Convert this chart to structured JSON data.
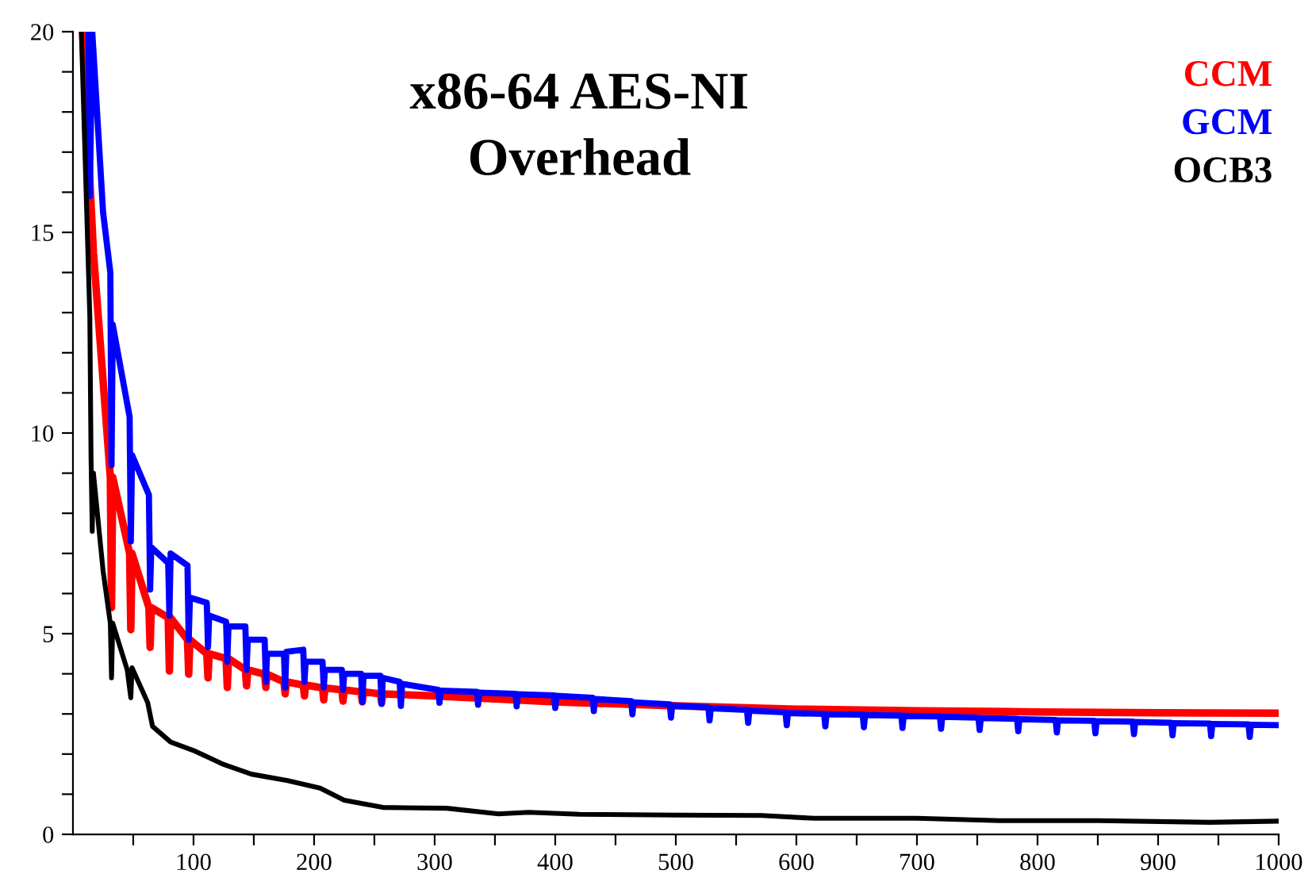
{
  "chart_data": {
    "type": "line",
    "title": "x86-64 AES-NI\nOverhead",
    "legend": "top right",
    "line_style": "solid",
    "xlim": [
      0,
      1000
    ],
    "ylim": [
      0,
      20
    ],
    "xticks": [
      {
        "value": 50,
        "label": null
      },
      100,
      {
        "value": 150,
        "label": null
      },
      200,
      {
        "value": 250,
        "label": null
      },
      300,
      {
        "value": 350,
        "label": null
      },
      400,
      {
        "value": 450,
        "label": null
      },
      500,
      {
        "value": 550,
        "label": null
      },
      600,
      {
        "value": 650,
        "label": null
      },
      700,
      {
        "value": 750,
        "label": null
      },
      800,
      {
        "value": 850,
        "label": null
      },
      900,
      {
        "value": 950,
        "label": null
      },
      1000
    ],
    "yticks": [
      0,
      {
        "value": 1,
        "label": null
      },
      {
        "value": 2,
        "label": null
      },
      {
        "value": 3,
        "label": null
      },
      {
        "value": 4,
        "label": null
      },
      5,
      {
        "value": 6,
        "label": null
      },
      {
        "value": 7,
        "label": null
      },
      {
        "value": 8,
        "label": null
      },
      {
        "value": 9,
        "label": null
      },
      10,
      {
        "value": 11,
        "label": null
      },
      {
        "value": 12,
        "label": null
      },
      {
        "value": 13,
        "label": null
      },
      {
        "value": 14,
        "label": null
      },
      15,
      {
        "value": 16,
        "label": null
      },
      {
        "value": 17,
        "label": null
      },
      {
        "value": 18,
        "label": null
      },
      {
        "value": 19,
        "label": null
      },
      20
    ],
    "series": [
      {
        "name": "CCM",
        "color": "#ff0000",
        "x": [
          8,
          17,
          31,
          32,
          33,
          47,
          48,
          49,
          63,
          64,
          65,
          79,
          80,
          81,
          95,
          96,
          97,
          111,
          112,
          113,
          127,
          128,
          129,
          143,
          144,
          145,
          159,
          160,
          161,
          175,
          176,
          177,
          191,
          192,
          193,
          207,
          208,
          209,
          223,
          224,
          225,
          239,
          240,
          241,
          255,
          256,
          257,
          300,
          400,
          500,
          600,
          700,
          800,
          900,
          1000
        ],
        "values": [
          20,
          14.5,
          8.9,
          5.65,
          8.9,
          7.0,
          5.1,
          7.0,
          5.65,
          4.66,
          5.65,
          5.4,
          4.07,
          5.4,
          4.85,
          3.99,
          4.85,
          4.5,
          3.9,
          4.5,
          4.38,
          3.66,
          4.38,
          4.1,
          3.7,
          4.1,
          3.99,
          3.66,
          3.99,
          3.8,
          3.5,
          3.8,
          3.72,
          3.45,
          3.72,
          3.65,
          3.35,
          3.65,
          3.6,
          3.32,
          3.6,
          3.55,
          3.3,
          3.55,
          3.5,
          3.28,
          3.5,
          3.45,
          3.3,
          3.2,
          3.12,
          3.08,
          3.05,
          3.03,
          3.02
        ]
      },
      {
        "name": "GCM",
        "color": "#0000ff",
        "x": [
          13,
          14,
          16,
          25,
          31,
          32,
          33,
          47,
          48,
          49,
          63,
          64,
          65,
          79,
          80,
          81,
          95,
          96,
          97,
          111,
          112,
          113,
          127,
          128,
          129,
          143,
          144,
          145,
          159,
          160,
          161,
          175,
          176,
          177,
          191,
          192,
          193,
          207,
          208,
          209,
          223,
          224,
          225,
          239,
          240,
          241,
          255,
          256,
          257,
          271,
          272,
          273,
          303,
          304,
          305,
          335,
          336,
          337,
          367,
          368,
          369,
          399,
          400,
          401,
          431,
          432,
          433,
          463,
          464,
          465,
          495,
          496,
          497,
          527,
          528,
          529,
          559,
          560,
          561,
          591,
          592,
          593,
          623,
          624,
          625,
          655,
          656,
          657,
          687,
          688,
          689,
          719,
          720,
          721,
          751,
          752,
          753,
          783,
          784,
          785,
          815,
          816,
          817,
          847,
          848,
          849,
          879,
          880,
          881,
          911,
          912,
          913,
          943,
          944,
          945,
          975,
          976,
          977,
          1000
        ],
        "values": [
          20,
          15.9,
          20,
          15.5,
          14,
          9.2,
          12.7,
          10.4,
          7.3,
          9.45,
          8.46,
          6.1,
          7.15,
          6.76,
          5.45,
          7.0,
          6.7,
          4.85,
          5.9,
          5.77,
          4.66,
          5.45,
          5.3,
          4.3,
          5.18,
          5.18,
          4.1,
          4.85,
          4.85,
          3.8,
          4.5,
          4.5,
          3.66,
          4.55,
          4.6,
          3.8,
          4.3,
          4.3,
          3.66,
          4.1,
          4.1,
          3.6,
          4.0,
          4.0,
          3.3,
          3.95,
          3.95,
          3.25,
          3.9,
          3.8,
          3.2,
          3.75,
          3.6,
          3.28,
          3.58,
          3.55,
          3.23,
          3.53,
          3.5,
          3.19,
          3.49,
          3.46,
          3.15,
          3.45,
          3.4,
          3.07,
          3.37,
          3.32,
          2.99,
          3.29,
          3.24,
          2.91,
          3.21,
          3.16,
          2.84,
          3.14,
          3.1,
          2.78,
          3.08,
          3.04,
          2.72,
          3.02,
          3.0,
          2.69,
          2.99,
          2.98,
          2.67,
          2.97,
          2.96,
          2.65,
          2.95,
          2.94,
          2.63,
          2.93,
          2.91,
          2.6,
          2.9,
          2.88,
          2.57,
          2.87,
          2.85,
          2.54,
          2.84,
          2.83,
          2.52,
          2.82,
          2.81,
          2.5,
          2.8,
          2.78,
          2.47,
          2.77,
          2.76,
          2.45,
          2.75,
          2.74,
          2.43,
          2.73,
          2.72
        ]
      },
      {
        "name": "OCB3",
        "color": "#000000",
        "x": [
          7,
          14,
          15,
          16,
          17,
          25,
          31,
          32,
          33,
          45,
          48,
          49,
          62,
          66,
          81,
          100,
          125,
          148,
          178,
          205,
          225,
          257,
          310,
          353,
          378,
          420,
          500,
          571,
          615,
          700,
          768,
          850,
          943,
          1000
        ],
        "values": [
          20,
          12.9,
          9.4,
          7.55,
          9.0,
          6.56,
          5.26,
          3.9,
          5.26,
          4.1,
          3.4,
          4.15,
          3.28,
          2.69,
          2.3,
          2.09,
          1.74,
          1.5,
          1.34,
          1.15,
          0.85,
          0.67,
          0.65,
          0.51,
          0.55,
          0.5,
          0.48,
          0.47,
          0.4,
          0.4,
          0.34,
          0.34,
          0.3,
          0.33
        ]
      }
    ]
  }
}
